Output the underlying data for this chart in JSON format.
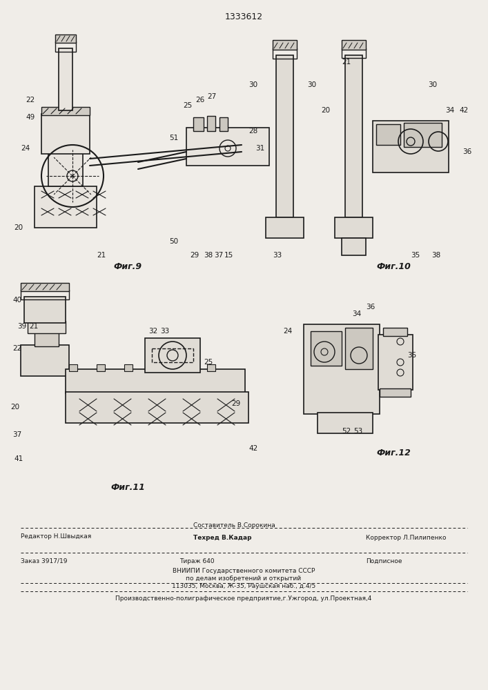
{
  "patent_number": "1333612",
  "background_color": "#f0ede8",
  "line_color": "#1a1a1a",
  "text_color": "#1a1a1a",
  "fig9_label": "Фиг.9",
  "fig10_label": "Фиг.10",
  "fig11_label": "Фиг.11",
  "fig12_label": "Фиг.12",
  "footer_line1_left": "Редактор Н.Швыдкая",
  "footer_line1_center1": "Составитель В.Сорокина",
  "footer_line1_center2": "Техред В.Кадар",
  "footer_line1_right": "Корректор Л.Пилипенко",
  "footer_line2_left": "Заказ 3917/19",
  "footer_line2_center": "Тираж 640",
  "footer_line2_right": "Подписное",
  "footer_vniip1": "ВНИИПИ Государственного комитета СССР",
  "footer_vniip2": "по делам изобретений и открытий",
  "footer_vniip3": "113035, Москва, Ж-35, Раушская наб., д.4/5",
  "footer_bottom": "Производственно-полиграфическое предприятие,г.Ужгород, ул.Проектная,4"
}
